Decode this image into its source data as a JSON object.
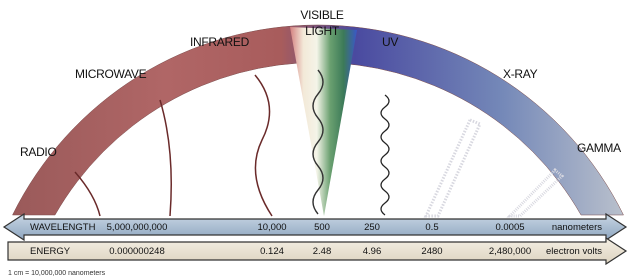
{
  "bands": [
    "RADIO",
    "MICROWAVE",
    "INFRARED",
    "UV",
    "X-RAY",
    "GAMMA"
  ],
  "visible_light": [
    "VISIBLE",
    "LIGHT"
  ],
  "wavelength": {
    "label": "WAVELENGTH",
    "values": [
      "5,000,000,000",
      "10,000",
      "500",
      "250",
      "0.5",
      "0.0005"
    ],
    "unit": "nanometers"
  },
  "energy": {
    "label": "ENERGY",
    "values": [
      "0.000000248",
      "0.124",
      "2.48",
      "4.96",
      "2480",
      "2,480,000"
    ],
    "unit": "electron volts"
  },
  "footnote": "1 cm = 10,000,000 nanometers"
}
